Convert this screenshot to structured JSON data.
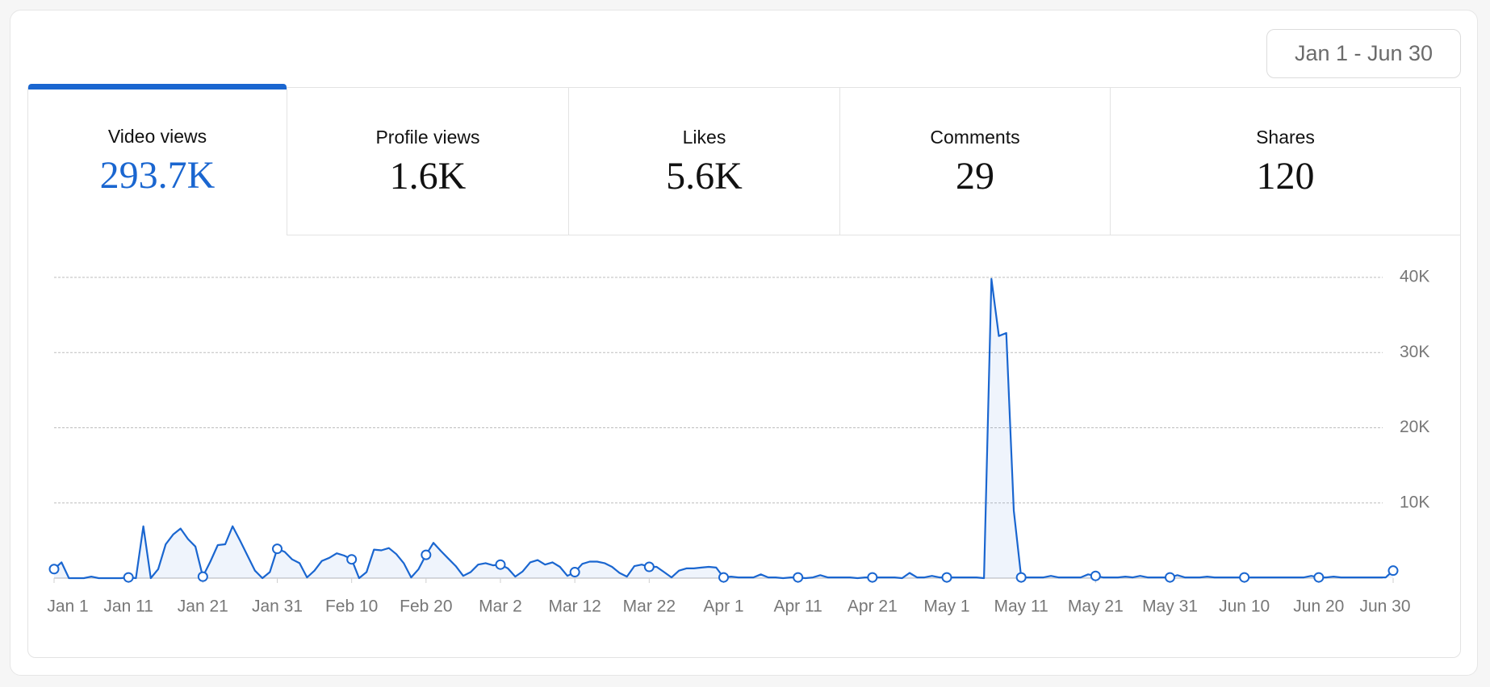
{
  "date_range": "Jan 1 - Jun 30",
  "tabs": [
    {
      "label": "Video views",
      "value": "293.7K"
    },
    {
      "label": "Profile views",
      "value": "1.6K"
    },
    {
      "label": "Likes",
      "value": "5.6K"
    },
    {
      "label": "Comments",
      "value": "29"
    },
    {
      "label": "Shares",
      "value": "120"
    }
  ],
  "active_tab": 0,
  "chart_data": {
    "type": "line",
    "color": "#1a66d0",
    "grid": true,
    "categories": [
      "Jan 1",
      null,
      null,
      null,
      null,
      null,
      null,
      null,
      null,
      null,
      "Jan 11",
      null,
      null,
      null,
      null,
      null,
      null,
      null,
      null,
      null,
      "Jan 21",
      null,
      null,
      null,
      null,
      null,
      null,
      null,
      null,
      null,
      "Jan 31",
      null,
      null,
      null,
      null,
      null,
      null,
      null,
      null,
      null,
      "Feb 10",
      null,
      null,
      null,
      null,
      null,
      null,
      null,
      null,
      null,
      "Feb 20",
      null,
      null,
      null,
      null,
      null,
      null,
      null,
      null,
      null,
      "Mar 2",
      null,
      null,
      null,
      null,
      null,
      null,
      null,
      null,
      null,
      "Mar 12",
      null,
      null,
      null,
      null,
      null,
      null,
      null,
      null,
      null,
      "Mar 22",
      null,
      null,
      null,
      null,
      null,
      null,
      null,
      null,
      null,
      "Apr 1",
      null,
      null,
      null,
      null,
      null,
      null,
      null,
      null,
      null,
      "Apr 11",
      null,
      null,
      null,
      null,
      null,
      null,
      null,
      null,
      null,
      "Apr 21",
      null,
      null,
      null,
      null,
      null,
      null,
      null,
      null,
      null,
      "May 1",
      null,
      null,
      null,
      null,
      null,
      null,
      null,
      null,
      null,
      "May 11",
      null,
      null,
      null,
      null,
      null,
      null,
      null,
      null,
      null,
      "May 21",
      null,
      null,
      null,
      null,
      null,
      null,
      null,
      null,
      null,
      "May 31",
      null,
      null,
      null,
      null,
      null,
      null,
      null,
      null,
      null,
      "Jun 10",
      null,
      null,
      null,
      null,
      null,
      null,
      null,
      null,
      null,
      "Jun 20",
      null,
      null,
      null,
      null,
      null,
      null,
      null,
      null,
      null,
      "Jun 30"
    ],
    "values": [
      1200,
      2100,
      0,
      0,
      0,
      200,
      0,
      0,
      0,
      0,
      100,
      0,
      6900,
      0,
      1200,
      4500,
      5800,
      6600,
      5200,
      4200,
      200,
      2200,
      4400,
      4500,
      6900,
      5000,
      3000,
      1000,
      0,
      800,
      3900,
      3500,
      2500,
      2000,
      100,
      1000,
      2300,
      2700,
      3300,
      3000,
      2500,
      0,
      800,
      3800,
      3700,
      4000,
      3200,
      2000,
      100,
      1200,
      3100,
      4700,
      3600,
      2600,
      1600,
      300,
      800,
      1800,
      2000,
      1700,
      1800,
      1300,
      200,
      900,
      2100,
      2400,
      1800,
      2100,
      1500,
      300,
      800,
      1900,
      2200,
      2200,
      2000,
      1500,
      700,
      200,
      1600,
      1800,
      1500,
      1500,
      800,
      100,
      1000,
      1300,
      1300,
      1400,
      1500,
      1400,
      100,
      200,
      100,
      100,
      100,
      500,
      100,
      100,
      0,
      100,
      100,
      0,
      100,
      400,
      100,
      100,
      100,
      100,
      0,
      100,
      100,
      100,
      100,
      100,
      0,
      700,
      100,
      100,
      300,
      100,
      100,
      100,
      100,
      100,
      100,
      0,
      39800,
      32200,
      32600,
      9000,
      100,
      100,
      100,
      100,
      300,
      100,
      100,
      100,
      100,
      500,
      300,
      100,
      100,
      100,
      200,
      100,
      300,
      100,
      100,
      100,
      100,
      400,
      100,
      100,
      100,
      200,
      100,
      100,
      100,
      100,
      100,
      100,
      100,
      100,
      100,
      100,
      100,
      100,
      100,
      300,
      100,
      100,
      200,
      100,
      100,
      100,
      100,
      100,
      100,
      100,
      1000
    ],
    "ylim": [
      0,
      40000
    ],
    "yticks": [
      {
        "value": 10000,
        "label": "10K"
      },
      {
        "value": 20000,
        "label": "20K"
      },
      {
        "value": 30000,
        "label": "30K"
      },
      {
        "value": 40000,
        "label": "40K"
      }
    ]
  }
}
